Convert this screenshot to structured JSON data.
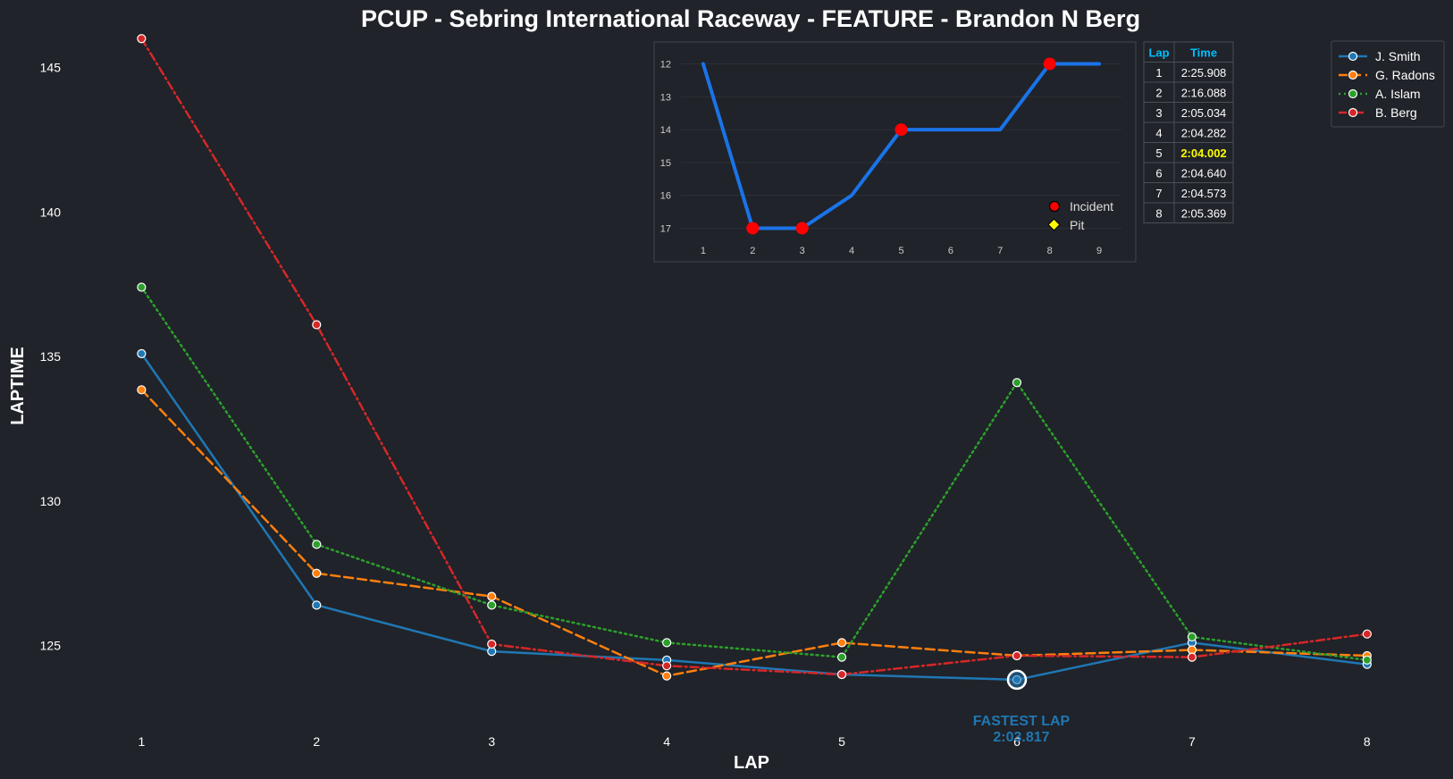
{
  "chart_data": [
    {
      "type": "line",
      "title": "PCUP - Sebring International Raceway - FEATURE - Brandon N Berg",
      "xlabel": "LAP",
      "ylabel": "LAPTIME",
      "x": [
        1,
        2,
        3,
        4,
        5,
        6,
        7,
        8
      ],
      "yticks": [
        125,
        130,
        135,
        140,
        145
      ],
      "xlim": [
        0.6,
        8.45
      ],
      "ylim": [
        122.3,
        146.1
      ],
      "grid": false,
      "legend_position": "top-right",
      "series": [
        {
          "name": "J. Smith",
          "color": "#1f77b4",
          "dash": "solid",
          "values": [
            135.1,
            126.4,
            124.8,
            124.5,
            124.0,
            123.817,
            125.1,
            124.35
          ]
        },
        {
          "name": "G. Radons",
          "color": "#ff7f0e",
          "dash": "dashed",
          "values": [
            133.85,
            127.5,
            126.7,
            123.95,
            125.1,
            124.65,
            124.85,
            124.65
          ]
        },
        {
          "name": "A. Islam",
          "color": "#2ca02c",
          "dash": "dotted",
          "values": [
            137.4,
            128.5,
            126.4,
            125.1,
            124.6,
            134.1,
            125.3,
            124.5
          ]
        },
        {
          "name": "B. Berg",
          "color": "#d62728",
          "dash": "dashdot",
          "values": [
            146.0,
            136.1,
            125.05,
            124.3,
            124.0,
            124.65,
            124.6,
            125.4
          ]
        }
      ],
      "annotation": {
        "label": "FASTEST LAP",
        "value_text": "2:03.817",
        "x": 6,
        "y": 123.817,
        "color": "#1f77b4"
      }
    },
    {
      "type": "line",
      "title": "",
      "x": [
        1,
        2,
        3,
        4,
        5,
        6,
        7,
        8,
        9
      ],
      "values": [
        12,
        17,
        17,
        16,
        14,
        14,
        14,
        12,
        12
      ],
      "yticks": [
        12,
        13,
        14,
        15,
        16,
        17
      ],
      "ylim": [
        11.55,
        17.45
      ],
      "y_inverted": true,
      "xlim": [
        0.55,
        9.45
      ],
      "line_color": "#1a73e8",
      "incidents_x": [
        2,
        3,
        5,
        8
      ],
      "pits_x": [],
      "legend": [
        {
          "label": "Incident",
          "color": "#ff0000"
        },
        {
          "label": "Pit",
          "color": "#ffff00"
        }
      ]
    }
  ],
  "lap_table": {
    "headers": [
      "Lap",
      "Time"
    ],
    "rows": [
      [
        "1",
        "2:25.908"
      ],
      [
        "2",
        "2:16.088"
      ],
      [
        "3",
        "2:05.034"
      ],
      [
        "4",
        "2:04.282"
      ],
      [
        "5",
        "2:04.002"
      ],
      [
        "6",
        "2:04.640"
      ],
      [
        "7",
        "2:04.573"
      ],
      [
        "8",
        "2:05.369"
      ]
    ],
    "best_row": 4,
    "header_color": "#00bfff",
    "best_color": "#ffff00"
  },
  "colors": {
    "background": "#202329",
    "text": "#ffffff",
    "panel_border": "#3c4048"
  }
}
